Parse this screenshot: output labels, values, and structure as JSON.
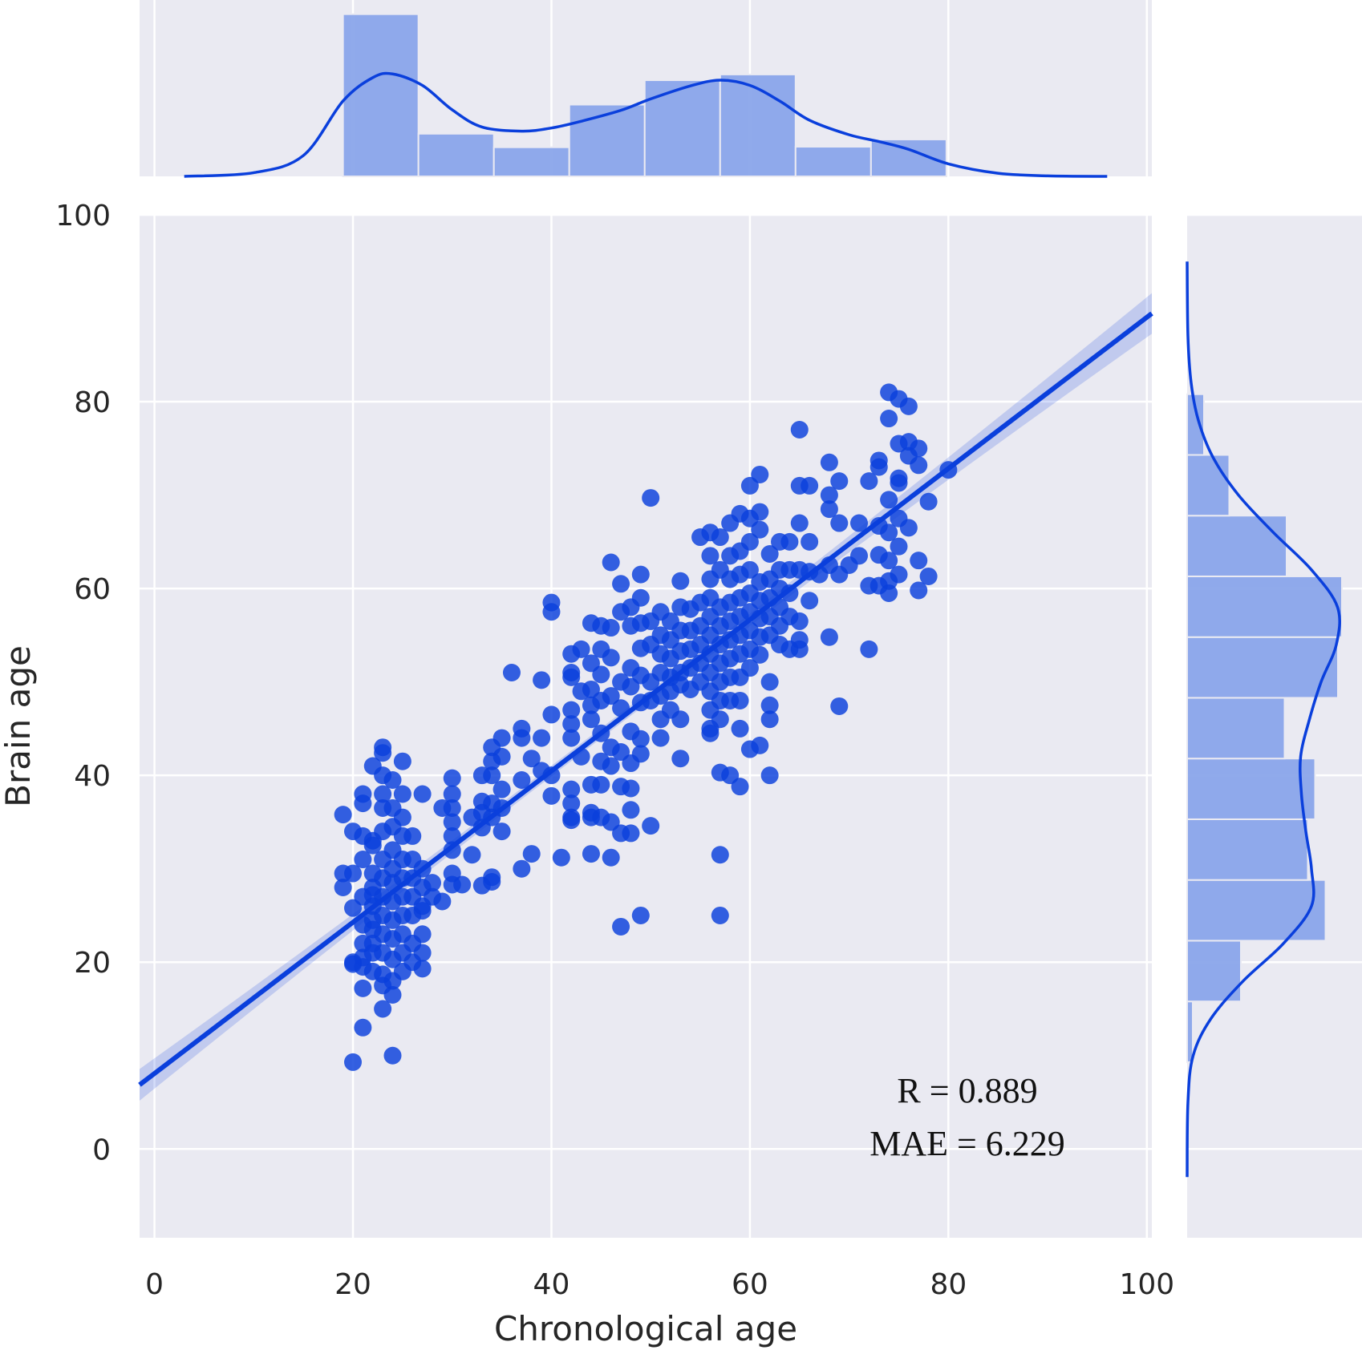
{
  "chart_data": {
    "type": "scatter",
    "xlabel": "Chronological age",
    "ylabel": "Brain age",
    "xlim": [
      -1.5,
      100.5
    ],
    "ylim": [
      -9.5,
      100
    ],
    "x_ticks": [
      "0",
      "20",
      "40",
      "60",
      "80",
      "100"
    ],
    "y_ticks": [
      "0",
      "20",
      "40",
      "60",
      "80",
      "100"
    ],
    "grid": true,
    "annotations": [
      "R = 0.889",
      "MAE = 6.229"
    ],
    "colors": {
      "points": "#0a3fdc",
      "line": "#0a3fdc",
      "hist": "#8aa5ea",
      "background": "#eaeaf2"
    },
    "regression": {
      "slope": 0.8096,
      "intercept": 8.08,
      "x_range": [
        -1.5,
        100.5
      ]
    },
    "top_histogram": {
      "bin_edges": [
        19,
        26.6,
        34.2,
        41.8,
        49.4,
        57,
        64.6,
        72.2,
        79.8
      ],
      "density": [
        0.0312,
        0.0082,
        0.0056,
        0.0138,
        0.0185,
        0.0196,
        0.0057,
        0.0071
      ],
      "kde_x": [
        3,
        10,
        15,
        19,
        22,
        24,
        27,
        30,
        33,
        37,
        40,
        43,
        47,
        50,
        54,
        57,
        60,
        63,
        66,
        70,
        73,
        76,
        80,
        85,
        90,
        96
      ],
      "kde_y": [
        0,
        0.0007,
        0.004,
        0.0145,
        0.019,
        0.0197,
        0.0175,
        0.0128,
        0.0095,
        0.0087,
        0.0093,
        0.0106,
        0.0127,
        0.0149,
        0.0174,
        0.0185,
        0.0175,
        0.0145,
        0.0108,
        0.008,
        0.0067,
        0.0052,
        0.0024,
        0.0006,
        0.0001,
        0
      ]
    },
    "right_histogram": {
      "bin_edges": [
        9.3,
        15.8,
        22.3,
        28.8,
        35.3,
        41.8,
        48.3,
        54.8,
        61.3,
        67.8,
        74.3,
        80.8
      ],
      "density": [
        0.0014,
        0.0134,
        0.0345,
        0.0301,
        0.0319,
        0.0243,
        0.0376,
        0.0386,
        0.0248,
        0.0105,
        0.0042
      ],
      "kde_y": [
        -3,
        5,
        10,
        14,
        18,
        22,
        26,
        30,
        34,
        38,
        42,
        46,
        50,
        54,
        58,
        62,
        66,
        70,
        74,
        78,
        82,
        87,
        95
      ],
      "kde_x": [
        0,
        0.0002,
        0.0015,
        0.006,
        0.014,
        0.024,
        0.031,
        0.031,
        0.0296,
        0.0285,
        0.0283,
        0.0305,
        0.0334,
        0.0372,
        0.0375,
        0.031,
        0.0215,
        0.0128,
        0.0065,
        0.0028,
        0.001,
        0.0002,
        0
      ]
    },
    "points": [
      [
        19,
        29.5
      ],
      [
        19,
        28
      ],
      [
        19,
        35.8
      ],
      [
        20,
        29.5
      ],
      [
        20,
        34
      ],
      [
        20,
        20
      ],
      [
        20,
        19.8
      ],
      [
        20,
        25.8
      ],
      [
        20,
        9.3
      ],
      [
        21,
        33.5
      ],
      [
        21,
        38
      ],
      [
        21,
        37
      ],
      [
        21,
        31
      ],
      [
        21,
        27
      ],
      [
        21,
        24
      ],
      [
        21,
        22
      ],
      [
        21,
        19.5
      ],
      [
        21,
        17.2
      ],
      [
        21,
        13
      ],
      [
        21,
        20.5
      ],
      [
        22,
        41
      ],
      [
        22,
        33
      ],
      [
        22,
        32.5
      ],
      [
        22,
        29.5
      ],
      [
        22,
        28
      ],
      [
        22,
        26
      ],
      [
        22,
        23.5
      ],
      [
        22,
        22
      ],
      [
        22,
        19
      ],
      [
        22,
        24.5
      ],
      [
        22,
        27.2
      ],
      [
        22,
        21
      ],
      [
        23,
        43
      ],
      [
        23,
        42.4
      ],
      [
        23,
        40
      ],
      [
        23,
        38
      ],
      [
        23,
        36.5
      ],
      [
        23,
        34
      ],
      [
        23,
        31
      ],
      [
        23,
        29
      ],
      [
        23,
        27
      ],
      [
        23,
        25
      ],
      [
        23,
        23
      ],
      [
        23,
        21
      ],
      [
        23,
        18.7
      ],
      [
        23,
        17.5
      ],
      [
        23,
        15
      ],
      [
        24,
        39.5
      ],
      [
        24,
        36.5
      ],
      [
        24,
        34.5
      ],
      [
        24,
        32
      ],
      [
        24,
        30
      ],
      [
        24,
        28.5
      ],
      [
        24,
        26.5
      ],
      [
        24,
        24.5
      ],
      [
        24,
        22.5
      ],
      [
        24,
        20.3
      ],
      [
        24,
        18
      ],
      [
        24,
        16.5
      ],
      [
        24,
        10
      ],
      [
        25,
        41.5
      ],
      [
        25,
        38
      ],
      [
        25,
        35.5
      ],
      [
        25,
        33.5
      ],
      [
        25,
        31
      ],
      [
        25,
        29
      ],
      [
        25,
        27
      ],
      [
        25,
        25
      ],
      [
        25,
        23
      ],
      [
        25,
        21
      ],
      [
        25,
        19
      ],
      [
        26,
        33.5
      ],
      [
        26,
        31
      ],
      [
        26,
        29
      ],
      [
        26,
        27
      ],
      [
        26,
        25
      ],
      [
        26,
        22
      ],
      [
        26,
        20
      ],
      [
        27,
        38
      ],
      [
        27,
        30
      ],
      [
        27,
        28
      ],
      [
        27,
        26
      ],
      [
        27,
        23
      ],
      [
        27,
        21
      ],
      [
        27,
        19.3
      ],
      [
        27,
        25.5
      ],
      [
        28,
        28.5
      ],
      [
        28,
        27
      ],
      [
        29,
        26.5
      ],
      [
        29,
        36.5
      ],
      [
        30,
        39.7
      ],
      [
        30,
        38
      ],
      [
        30,
        36.5
      ],
      [
        30,
        35
      ],
      [
        30,
        33.5
      ],
      [
        30,
        32
      ],
      [
        30,
        29.5
      ],
      [
        30,
        28.3
      ],
      [
        31,
        28.3
      ],
      [
        32,
        35.5
      ],
      [
        32,
        31.5
      ],
      [
        33,
        40
      ],
      [
        33,
        37.2
      ],
      [
        33,
        36
      ],
      [
        33,
        34.4
      ],
      [
        33,
        28.2
      ],
      [
        34,
        43
      ],
      [
        34,
        41.5
      ],
      [
        34,
        40
      ],
      [
        34,
        37
      ],
      [
        34,
        35.5
      ],
      [
        34,
        29.1
      ],
      [
        34,
        28.6
      ],
      [
        35,
        44
      ],
      [
        35,
        42
      ],
      [
        35,
        38.5
      ],
      [
        35,
        36.5
      ],
      [
        35,
        34
      ],
      [
        36,
        51
      ],
      [
        37,
        45
      ],
      [
        37,
        44
      ],
      [
        37,
        39.5
      ],
      [
        37,
        30
      ],
      [
        38,
        41.8
      ],
      [
        38,
        31.6
      ],
      [
        39,
        50.2
      ],
      [
        39,
        44
      ],
      [
        39,
        40.5
      ],
      [
        40,
        58.5
      ],
      [
        40,
        57.5
      ],
      [
        40,
        46.5
      ],
      [
        40,
        37.8
      ],
      [
        40,
        40
      ],
      [
        41,
        31.2
      ],
      [
        42,
        53
      ],
      [
        42,
        51
      ],
      [
        42,
        50.5
      ],
      [
        42,
        47
      ],
      [
        42,
        45.5
      ],
      [
        42,
        44
      ],
      [
        42,
        38.5
      ],
      [
        42,
        37
      ],
      [
        42,
        35.5
      ],
      [
        42,
        35.2
      ],
      [
        43,
        53.5
      ],
      [
        43,
        49
      ],
      [
        43,
        42
      ],
      [
        44,
        56.3
      ],
      [
        44,
        52
      ],
      [
        44,
        49.2
      ],
      [
        44,
        47.5
      ],
      [
        44,
        46
      ],
      [
        44,
        39
      ],
      [
        44,
        36
      ],
      [
        44,
        35.5
      ],
      [
        44,
        31.6
      ],
      [
        45,
        56
      ],
      [
        45,
        53.5
      ],
      [
        45,
        50.8
      ],
      [
        45,
        48
      ],
      [
        45,
        44.5
      ],
      [
        45,
        41.5
      ],
      [
        45,
        39
      ],
      [
        45,
        35.5
      ],
      [
        46,
        62.8
      ],
      [
        46,
        55.8
      ],
      [
        46,
        52.6
      ],
      [
        46,
        48.5
      ],
      [
        46,
        43
      ],
      [
        46,
        41
      ],
      [
        46,
        35
      ],
      [
        46,
        31.2
      ],
      [
        47,
        60.5
      ],
      [
        47,
        57.5
      ],
      [
        47,
        50
      ],
      [
        47,
        47.2
      ],
      [
        47,
        42.5
      ],
      [
        47,
        38.8
      ],
      [
        47,
        33.8
      ],
      [
        47,
        23.8
      ],
      [
        48,
        58
      ],
      [
        48,
        56
      ],
      [
        48,
        51.5
      ],
      [
        48,
        49.5
      ],
      [
        48,
        44.7
      ],
      [
        48,
        41.3
      ],
      [
        48,
        38.6
      ],
      [
        48,
        36.3
      ],
      [
        48,
        33.8
      ],
      [
        49,
        61.5
      ],
      [
        49,
        59
      ],
      [
        49,
        56.3
      ],
      [
        49,
        53.6
      ],
      [
        49,
        50.7
      ],
      [
        49,
        47.8
      ],
      [
        49,
        43.9
      ],
      [
        49,
        42.3
      ],
      [
        49,
        25
      ],
      [
        50,
        69.7
      ],
      [
        50,
        56.5
      ],
      [
        50,
        54
      ],
      [
        50,
        50
      ],
      [
        50,
        48
      ],
      [
        50,
        34.6
      ],
      [
        51,
        57.5
      ],
      [
        51,
        55
      ],
      [
        51,
        53
      ],
      [
        51,
        51
      ],
      [
        51,
        48.5
      ],
      [
        51,
        46
      ],
      [
        51,
        44
      ],
      [
        52,
        56.5
      ],
      [
        52,
        54.5
      ],
      [
        52,
        52.5
      ],
      [
        52,
        50.5
      ],
      [
        52,
        49
      ],
      [
        52,
        47
      ],
      [
        53,
        60.8
      ],
      [
        53,
        58
      ],
      [
        53,
        55.5
      ],
      [
        53,
        53.3
      ],
      [
        53,
        51
      ],
      [
        53,
        49.7
      ],
      [
        53,
        46
      ],
      [
        53,
        41.8
      ],
      [
        54,
        57.8
      ],
      [
        54,
        55.5
      ],
      [
        54,
        53.5
      ],
      [
        54,
        51.5
      ],
      [
        54,
        49.2
      ],
      [
        55,
        65.5
      ],
      [
        55,
        58.5
      ],
      [
        55,
        56
      ],
      [
        55,
        54
      ],
      [
        55,
        52
      ],
      [
        55,
        50
      ],
      [
        56,
        66
      ],
      [
        56,
        63.5
      ],
      [
        56,
        61
      ],
      [
        56,
        59
      ],
      [
        56,
        57
      ],
      [
        56,
        55
      ],
      [
        56,
        53
      ],
      [
        56,
        51
      ],
      [
        56,
        49
      ],
      [
        56,
        47
      ],
      [
        56,
        45
      ],
      [
        56,
        44.5
      ],
      [
        57,
        65.5
      ],
      [
        57,
        62
      ],
      [
        57,
        58
      ],
      [
        57,
        56
      ],
      [
        57,
        54
      ],
      [
        57,
        52
      ],
      [
        57,
        50
      ],
      [
        57,
        48
      ],
      [
        57,
        46
      ],
      [
        57,
        40.3
      ],
      [
        57,
        31.5
      ],
      [
        57,
        25
      ],
      [
        58,
        67
      ],
      [
        58,
        63.5
      ],
      [
        58,
        61
      ],
      [
        58,
        58.5
      ],
      [
        58,
        56.5
      ],
      [
        58,
        54.5
      ],
      [
        58,
        52.5
      ],
      [
        58,
        50.5
      ],
      [
        58,
        48
      ],
      [
        58,
        40
      ],
      [
        59,
        68
      ],
      [
        59,
        64
      ],
      [
        59,
        61.5
      ],
      [
        59,
        59
      ],
      [
        59,
        57
      ],
      [
        59,
        55
      ],
      [
        59,
        53
      ],
      [
        59,
        50.5
      ],
      [
        59,
        48
      ],
      [
        59,
        45
      ],
      [
        59,
        38.8
      ],
      [
        60,
        71
      ],
      [
        60,
        67.5
      ],
      [
        60,
        65
      ],
      [
        60,
        62
      ],
      [
        60,
        59.5
      ],
      [
        60,
        57.5
      ],
      [
        60,
        55.5
      ],
      [
        60,
        53.5
      ],
      [
        60,
        51.5
      ],
      [
        60,
        42.8
      ],
      [
        61,
        72.2
      ],
      [
        61,
        68.2
      ],
      [
        61,
        66.3
      ],
      [
        61,
        60.7
      ],
      [
        61,
        58.7
      ],
      [
        61,
        56.8
      ],
      [
        61,
        54.8
      ],
      [
        61,
        52.9
      ],
      [
        61,
        43.2
      ],
      [
        62,
        63.7
      ],
      [
        62,
        61
      ],
      [
        62,
        59
      ],
      [
        62,
        57
      ],
      [
        62,
        55
      ],
      [
        62,
        50
      ],
      [
        62,
        47.5
      ],
      [
        62,
        46
      ],
      [
        62,
        40
      ],
      [
        63,
        65
      ],
      [
        63,
        62
      ],
      [
        63,
        60
      ],
      [
        63,
        58
      ],
      [
        63,
        56
      ],
      [
        63,
        54
      ],
      [
        64,
        65
      ],
      [
        64,
        62
      ],
      [
        64,
        59.5
      ],
      [
        64,
        57
      ],
      [
        64,
        53.5
      ],
      [
        65,
        77
      ],
      [
        65,
        71
      ],
      [
        65,
        67
      ],
      [
        65,
        62
      ],
      [
        65,
        56.5
      ],
      [
        65,
        54.5
      ],
      [
        65,
        53.5
      ],
      [
        66,
        71
      ],
      [
        66,
        65
      ],
      [
        66,
        61.8
      ],
      [
        66,
        58.7
      ],
      [
        67,
        61.5
      ],
      [
        68,
        73.5
      ],
      [
        68,
        70
      ],
      [
        68,
        68.5
      ],
      [
        68,
        62.5
      ],
      [
        68,
        54.8
      ],
      [
        69,
        71.5
      ],
      [
        69,
        67
      ],
      [
        69,
        61.5
      ],
      [
        69,
        47.4
      ],
      [
        70,
        62.5
      ],
      [
        71,
        67
      ],
      [
        71,
        63.5
      ],
      [
        72,
        71.5
      ],
      [
        72,
        60.3
      ],
      [
        72,
        53.5
      ],
      [
        73,
        73.7
      ],
      [
        73,
        73
      ],
      [
        73,
        66.7
      ],
      [
        73,
        63.6
      ],
      [
        73,
        60.3
      ],
      [
        74,
        81
      ],
      [
        74,
        78.2
      ],
      [
        74,
        69.5
      ],
      [
        74,
        66
      ],
      [
        74,
        63
      ],
      [
        74,
        60.8
      ],
      [
        74,
        59.5
      ],
      [
        75,
        80.3
      ],
      [
        75,
        75.5
      ],
      [
        75,
        71.8
      ],
      [
        75,
        71.3
      ],
      [
        75,
        67.5
      ],
      [
        75,
        64.5
      ],
      [
        75,
        61.5
      ],
      [
        76,
        79.5
      ],
      [
        76,
        75.7
      ],
      [
        76,
        74.2
      ],
      [
        76,
        66.5
      ],
      [
        77,
        75
      ],
      [
        77,
        73.2
      ],
      [
        77,
        63
      ],
      [
        77,
        59.8
      ],
      [
        78,
        69.3
      ],
      [
        78,
        61.3
      ],
      [
        80,
        72.7
      ]
    ]
  }
}
